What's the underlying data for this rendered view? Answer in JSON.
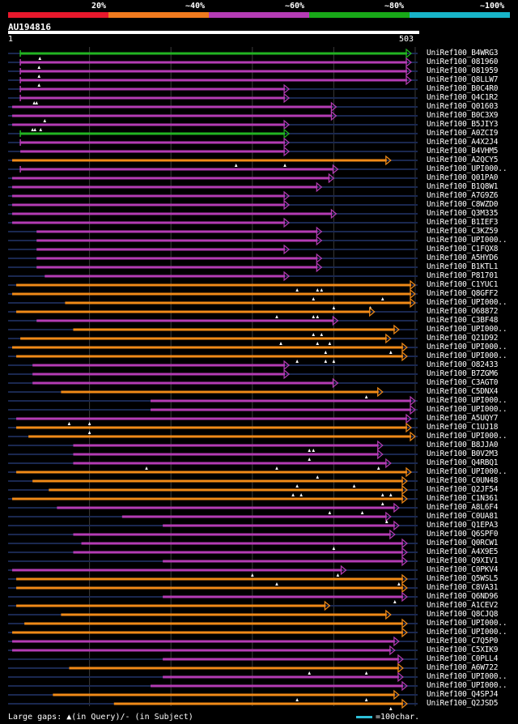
{
  "legend": {
    "labels": [
      "20%",
      "~40%",
      "~60%",
      "~80%",
      "~100%"
    ],
    "colors": [
      "#e8182c",
      "#f07a1e",
      "#b43cb4",
      "#18a818",
      "#18b4c8"
    ]
  },
  "query": {
    "name": "AU194816",
    "start": "1",
    "end": "503",
    "length": 503
  },
  "colors": {
    "green": "#22b422",
    "magenta": "#b43cb4",
    "orange": "#f08a18",
    "gap": "#1a2850",
    "tick": "#ffffff",
    "guide": "#3a3a3a"
  },
  "footer": {
    "gaps_label": "Large gaps: ▲(in Query)/- (in Subject)",
    "scale_label": "=100char."
  },
  "hits": [
    {
      "id": "UniRef100_B4WRG3",
      "s": 15,
      "e": 495,
      "c": "green",
      "q": [
        39
      ],
      "tick": true
    },
    {
      "id": "UniRef100_081960",
      "s": 15,
      "e": 495,
      "c": "magenta",
      "q": [
        38
      ],
      "tick": true
    },
    {
      "id": "UniRef100_081959",
      "s": 15,
      "e": 495,
      "c": "magenta",
      "q": [
        38
      ],
      "tick": true
    },
    {
      "id": "UniRef100_Q8LLW7",
      "s": 15,
      "e": 495,
      "c": "magenta",
      "q": [
        38
      ],
      "tick": true
    },
    {
      "id": "UniRef100_B0C4R0",
      "s": 15,
      "e": 345,
      "c": "magenta",
      "q": [],
      "tick": true
    },
    {
      "id": "UniRef100_Q4C1R2",
      "s": 15,
      "e": 345,
      "c": "magenta",
      "q": [
        32,
        35
      ],
      "tick": true
    },
    {
      "id": "UniRef100_Q01603",
      "s": 5,
      "e": 403,
      "c": "magenta",
      "q": [],
      "tick": false
    },
    {
      "id": "UniRef100_B0C3X9",
      "s": 5,
      "e": 403,
      "c": "magenta",
      "q": [
        45
      ],
      "tick": false
    },
    {
      "id": "UniRef100_B5JIY3",
      "s": 5,
      "e": 345,
      "c": "magenta",
      "q": [
        30,
        33,
        40
      ],
      "tick": false
    },
    {
      "id": "UniRef100_A0ZCI9",
      "s": 15,
      "e": 345,
      "c": "green",
      "q": [],
      "tick": true
    },
    {
      "id": "UniRef100_A4X2J4",
      "s": 15,
      "e": 345,
      "c": "magenta",
      "q": [],
      "tick": true
    },
    {
      "id": "UniRef100_B4VHM5",
      "s": 15,
      "e": 345,
      "c": "magenta",
      "q": [],
      "tick": false
    },
    {
      "id": "UniRef100_A2QCY5",
      "s": 5,
      "e": 470,
      "c": "orange",
      "q": [
        280,
        340
      ],
      "tick": false
    },
    {
      "id": "UniRef100_UPI000..",
      "s": 15,
      "e": 405,
      "c": "magenta",
      "q": [],
      "tick": true
    },
    {
      "id": "UniRef100_Q01PA0",
      "s": 5,
      "e": 400,
      "c": "magenta",
      "q": [],
      "tick": false
    },
    {
      "id": "UniRef100_B1Q8W1",
      "s": 5,
      "e": 385,
      "c": "magenta",
      "q": [],
      "tick": false
    },
    {
      "id": "UniRef100_A7G9Z6",
      "s": 5,
      "e": 345,
      "c": "magenta",
      "q": [],
      "tick": false
    },
    {
      "id": "UniRef100_C8WZD0",
      "s": 5,
      "e": 345,
      "c": "magenta",
      "q": [],
      "tick": false
    },
    {
      "id": "UniRef100_Q3M335",
      "s": 5,
      "e": 403,
      "c": "magenta",
      "q": [],
      "tick": false
    },
    {
      "id": "UniRef100_B1IEF3",
      "s": 5,
      "e": 345,
      "c": "magenta",
      "q": [],
      "tick": false
    },
    {
      "id": "UniRef100_C3KZ59",
      "s": 35,
      "e": 385,
      "c": "magenta",
      "q": [],
      "tick": false
    },
    {
      "id": "UniRef100_UPI000..",
      "s": 35,
      "e": 385,
      "c": "magenta",
      "q": [],
      "tick": false
    },
    {
      "id": "UniRef100_C1FQX8",
      "s": 35,
      "e": 345,
      "c": "magenta",
      "q": [],
      "tick": false
    },
    {
      "id": "UniRef100_A5HYD6",
      "s": 35,
      "e": 385,
      "c": "magenta",
      "q": [],
      "tick": false
    },
    {
      "id": "UniRef100_B1KTL1",
      "s": 35,
      "e": 385,
      "c": "magenta",
      "q": [],
      "tick": false
    },
    {
      "id": "UniRef100_P81701",
      "s": 45,
      "e": 345,
      "c": "magenta",
      "q": [],
      "tick": false
    },
    {
      "id": "UniRef100_C1YUC1",
      "s": 10,
      "e": 500,
      "c": "orange",
      "q": [
        355,
        380,
        385
      ],
      "tick": false
    },
    {
      "id": "UniRef100_Q8GFF2",
      "s": 5,
      "e": 500,
      "c": "orange",
      "q": [
        375,
        460
      ],
      "tick": false
    },
    {
      "id": "UniRef100_UPI000..",
      "s": 70,
      "e": 500,
      "c": "orange",
      "q": [
        400,
        445
      ],
      "tick": false
    },
    {
      "id": "UniRef100_O68872",
      "s": 10,
      "e": 450,
      "c": "orange",
      "q": [
        330,
        375,
        380
      ],
      "tick": false
    },
    {
      "id": "UniRef100_C3BF48",
      "s": 35,
      "e": 405,
      "c": "magenta",
      "q": [],
      "tick": false
    },
    {
      "id": "UniRef100_UPI000..",
      "s": 80,
      "e": 480,
      "c": "orange",
      "q": [
        375,
        385
      ],
      "tick": false
    },
    {
      "id": "UniRef100_Q21D92",
      "s": 15,
      "e": 470,
      "c": "orange",
      "q": [
        335,
        380,
        395
      ],
      "tick": false
    },
    {
      "id": "UniRef100_UPI000..",
      "s": 5,
      "e": 490,
      "c": "orange",
      "q": [
        390,
        470
      ],
      "tick": false
    },
    {
      "id": "UniRef100_UPI000..",
      "s": 10,
      "e": 490,
      "c": "orange",
      "q": [
        355,
        390,
        400
      ],
      "tick": false
    },
    {
      "id": "UniRef100_O82433",
      "s": 30,
      "e": 345,
      "c": "magenta",
      "q": [],
      "tick": false
    },
    {
      "id": "UniRef100_B7ZGM6",
      "s": 30,
      "e": 345,
      "c": "magenta",
      "q": [],
      "tick": false
    },
    {
      "id": "UniRef100_C3AGT0",
      "s": 30,
      "e": 405,
      "c": "magenta",
      "q": [],
      "tick": false
    },
    {
      "id": "UniRef100_C5DNX4",
      "s": 65,
      "e": 460,
      "c": "orange",
      "q": [
        440
      ],
      "tick": false
    },
    {
      "id": "UniRef100_UPI000..",
      "s": 175,
      "e": 500,
      "c": "magenta",
      "q": [],
      "tick": false
    },
    {
      "id": "UniRef100_UPI000..",
      "s": 175,
      "e": 500,
      "c": "magenta",
      "q": [],
      "tick": false
    },
    {
      "id": "UniRef100_A5UQY7",
      "s": 10,
      "e": 495,
      "c": "magenta",
      "q": [
        75,
        100
      ],
      "tick": false
    },
    {
      "id": "UniRef100_C1UJ18",
      "s": 10,
      "e": 495,
      "c": "orange",
      "q": [
        100
      ],
      "tick": false
    },
    {
      "id": "UniRef100_UPI000..",
      "s": 25,
      "e": 500,
      "c": "orange",
      "q": [],
      "tick": false
    },
    {
      "id": "UniRef100_B8JJA0",
      "s": 80,
      "e": 460,
      "c": "magenta",
      "q": [
        370,
        375
      ],
      "tick": false
    },
    {
      "id": "UniRef100_B0V2M3",
      "s": 80,
      "e": 460,
      "c": "magenta",
      "q": [
        370
      ],
      "tick": false
    },
    {
      "id": "UniRef100_Q4RBQ1",
      "s": 80,
      "e": 470,
      "c": "magenta",
      "q": [
        170,
        330,
        455
      ],
      "tick": false
    },
    {
      "id": "UniRef100_UPI000..",
      "s": 10,
      "e": 495,
      "c": "orange",
      "q": [
        380
      ],
      "tick": false
    },
    {
      "id": "UniRef100_C0UN48",
      "s": 30,
      "e": 490,
      "c": "orange",
      "q": [
        355,
        425
      ],
      "tick": false
    },
    {
      "id": "UniRef100_Q2JF54",
      "s": 50,
      "e": 490,
      "c": "orange",
      "q": [
        350,
        360,
        460,
        470
      ],
      "tick": false
    },
    {
      "id": "UniRef100_C1N361",
      "s": 5,
      "e": 490,
      "c": "orange",
      "q": [
        460
      ],
      "tick": false
    },
    {
      "id": "UniRef100_A8L6F4",
      "s": 60,
      "e": 480,
      "c": "magenta",
      "q": [
        395,
        435
      ],
      "tick": false
    },
    {
      "id": "UniRef100_C0UA81",
      "s": 140,
      "e": 470,
      "c": "magenta",
      "q": [
        465
      ],
      "tick": false
    },
    {
      "id": "UniRef100_Q1EPA3",
      "s": 190,
      "e": 480,
      "c": "magenta",
      "q": [],
      "tick": false
    },
    {
      "id": "UniRef100_Q6SPF0",
      "s": 80,
      "e": 475,
      "c": "magenta",
      "q": [],
      "tick": false
    },
    {
      "id": "UniRef100_Q0RCW1",
      "s": 90,
      "e": 490,
      "c": "magenta",
      "q": [
        400
      ],
      "tick": false
    },
    {
      "id": "UniRef100_A4X9E5",
      "s": 80,
      "e": 490,
      "c": "magenta",
      "q": [],
      "tick": false
    },
    {
      "id": "UniRef100_Q9XIV1",
      "s": 190,
      "e": 490,
      "c": "magenta",
      "q": [],
      "tick": false
    },
    {
      "id": "UniRef100_C0PKV4",
      "s": 5,
      "e": 415,
      "c": "magenta",
      "q": [
        300,
        405
      ],
      "tick": false
    },
    {
      "id": "UniRef100_Q5WSL5",
      "s": 10,
      "e": 490,
      "c": "orange",
      "q": [
        330,
        480
      ],
      "tick": false
    },
    {
      "id": "UniRef100_C8VA31",
      "s": 10,
      "e": 490,
      "c": "orange",
      "q": [],
      "tick": false
    },
    {
      "id": "UniRef100_Q6ND96",
      "s": 190,
      "e": 490,
      "c": "magenta",
      "q": [
        475
      ],
      "tick": false
    },
    {
      "id": "UniRef100_A1CEV2",
      "s": 10,
      "e": 395,
      "c": "orange",
      "q": [],
      "tick": false
    },
    {
      "id": "UniRef100_Q8CJQ8",
      "s": 65,
      "e": 470,
      "c": "orange",
      "q": [],
      "tick": false
    },
    {
      "id": "UniRef100_UPI000..",
      "s": 20,
      "e": 490,
      "c": "orange",
      "q": [],
      "tick": false
    },
    {
      "id": "UniRef100_UPI000..",
      "s": 5,
      "e": 490,
      "c": "orange",
      "q": [],
      "tick": false
    },
    {
      "id": "UniRef100_C7Q5P0",
      "s": 5,
      "e": 480,
      "c": "magenta",
      "q": [],
      "tick": false
    },
    {
      "id": "UniRef100_C5XIK9",
      "s": 5,
      "e": 475,
      "c": "magenta",
      "q": [],
      "tick": false
    },
    {
      "id": "UniRef100_C0PLL4",
      "s": 190,
      "e": 485,
      "c": "magenta",
      "q": [],
      "tick": false
    },
    {
      "id": "UniRef100_A6W722",
      "s": 75,
      "e": 485,
      "c": "orange",
      "q": [
        370,
        440
      ],
      "tick": false
    },
    {
      "id": "UniRef100_UPI000..",
      "s": 190,
      "e": 485,
      "c": "magenta",
      "q": [],
      "tick": false
    },
    {
      "id": "UniRef100_UPI000..",
      "s": 175,
      "e": 490,
      "c": "magenta",
      "q": [],
      "tick": false
    },
    {
      "id": "UniRef100_Q4SPJ4",
      "s": 55,
      "e": 480,
      "c": "orange",
      "q": [
        355,
        440
      ],
      "tick": false
    },
    {
      "id": "UniRef100_Q2JSD5",
      "s": 130,
      "e": 490,
      "c": "orange",
      "q": [
        470
      ],
      "tick": false
    }
  ]
}
